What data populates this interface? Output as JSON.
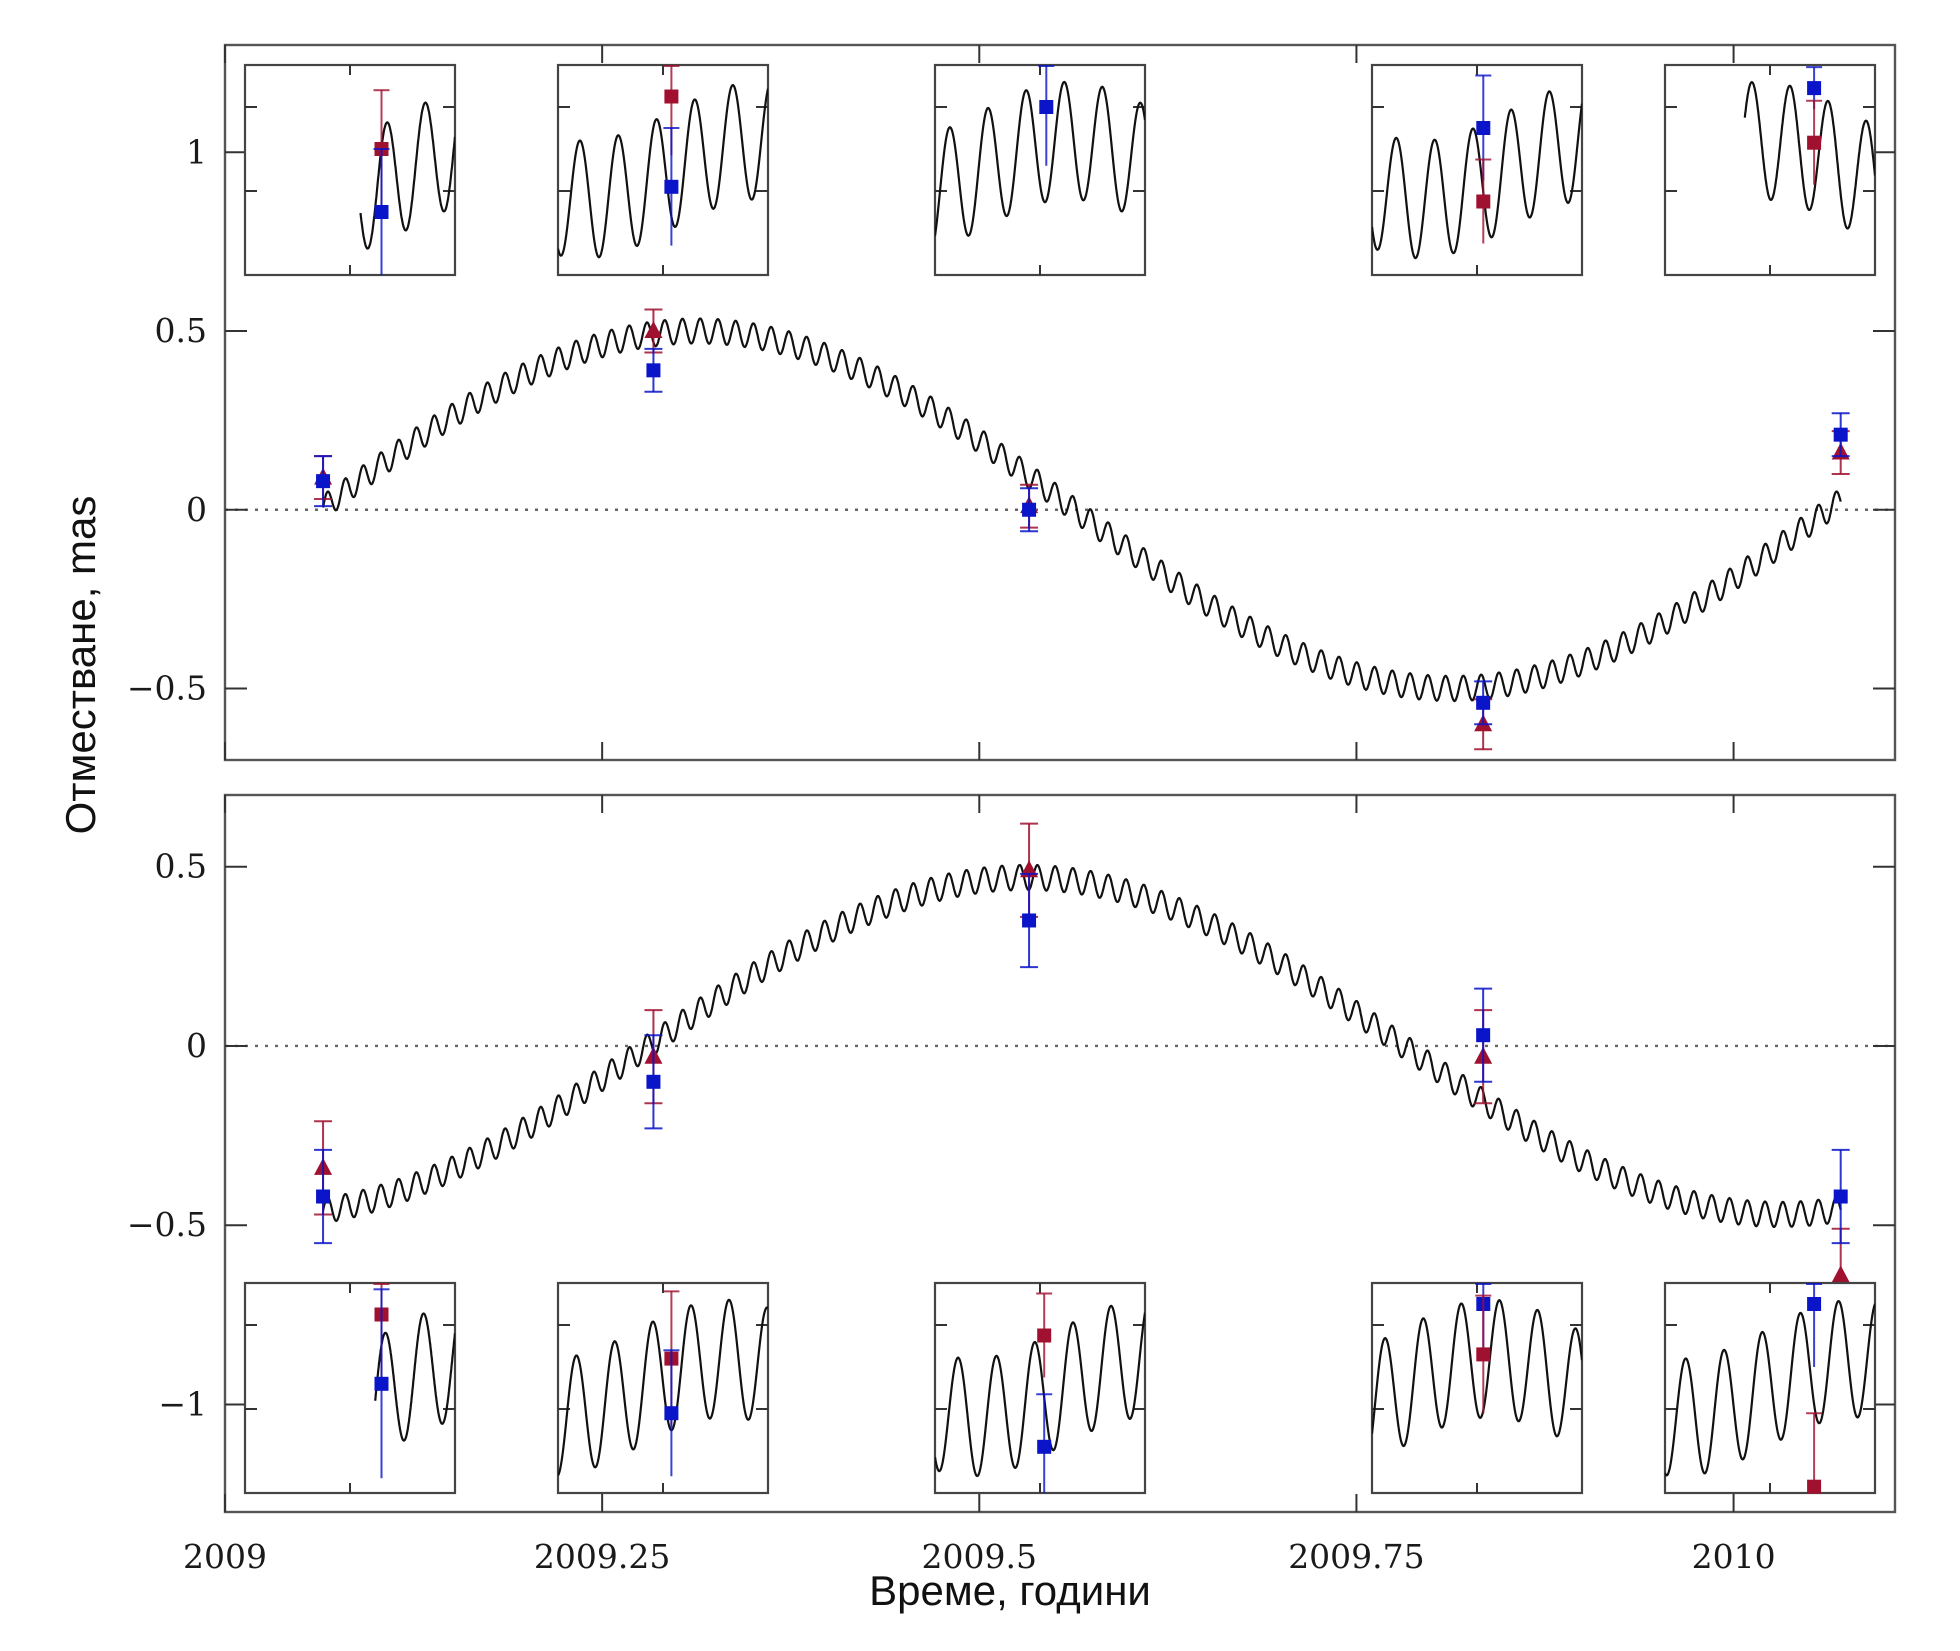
{
  "chart_data": [
    {
      "type": "scatter",
      "panel": "upper",
      "xlabel": "Време, години",
      "ylabel": "Отместване, mas",
      "xlim": [
        2009,
        2010.107
      ],
      "ylim": [
        -0.7,
        1.3
      ],
      "xticks": [
        2009,
        2009.25,
        2009.5,
        2009.75,
        2010
      ],
      "xtick_labels": [
        "2009",
        "2009.25",
        "2009.5",
        "2009.75",
        "2010"
      ],
      "yticks": [
        -0.5,
        0,
        0.5,
        1
      ],
      "ytick_labels": [
        "−0.5",
        "0",
        "0.5",
        "1"
      ],
      "reference_line": 0,
      "model": {
        "amplitude": 0.5,
        "period_years": 1.0,
        "phase_zero_year": 2009.063,
        "wiggle_amplitude": 0.035,
        "wiggle_cycles_per_year": 85
      },
      "series": [
        {
          "marker": "triangle",
          "color": "#a0102f",
          "points": [
            {
              "x": 2009.065,
              "y": 0.09,
              "err": 0.06
            },
            {
              "x": 2009.284,
              "y": 0.5,
              "err": 0.06
            },
            {
              "x": 2009.533,
              "y": 0.01,
              "err": 0.06
            },
            {
              "x": 2009.834,
              "y": -0.6,
              "err": 0.07
            },
            {
              "x": 2010.071,
              "y": 0.16,
              "err": 0.06
            }
          ]
        },
        {
          "marker": "square",
          "color": "#0a14c8",
          "points": [
            {
              "x": 2009.065,
              "y": 0.08,
              "err": 0.07
            },
            {
              "x": 2009.284,
              "y": 0.39,
              "err": 0.06
            },
            {
              "x": 2009.533,
              "y": 0.0,
              "err": 0.06
            },
            {
              "x": 2009.834,
              "y": -0.54,
              "err": 0.06
            },
            {
              "x": 2010.071,
              "y": 0.21,
              "err": 0.06
            }
          ]
        }
      ]
    },
    {
      "type": "scatter",
      "panel": "lower",
      "xlabel": "Време, години",
      "ylabel": "Отместване, mas",
      "xlim": [
        2009,
        2010.107
      ],
      "ylim": [
        -1.3,
        0.7
      ],
      "xticks": [
        2009,
        2009.25,
        2009.5,
        2009.75,
        2010
      ],
      "xtick_labels": [
        "2009",
        "2009.25",
        "2009.5",
        "2009.75",
        "2010"
      ],
      "yticks": [
        -1,
        -0.5,
        0,
        0.5
      ],
      "ytick_labels": [
        "−1",
        "−0.5",
        "0",
        "0.5"
      ],
      "reference_line": 0,
      "model": {
        "amplitude": 0.47,
        "period_years": 1.0,
        "phase_zero_year": 2009.281,
        "wiggle_amplitude": 0.035,
        "wiggle_cycles_per_year": 85
      },
      "series": [
        {
          "marker": "triangle",
          "color": "#a0102f",
          "points": [
            {
              "x": 2009.065,
              "y": -0.34,
              "err": 0.13
            },
            {
              "x": 2009.284,
              "y": -0.03,
              "err": 0.13
            },
            {
              "x": 2009.533,
              "y": 0.49,
              "err": 0.13
            },
            {
              "x": 2009.834,
              "y": -0.03,
              "err": 0.13
            },
            {
              "x": 2010.071,
              "y": -0.64,
              "err": 0.13
            }
          ]
        },
        {
          "marker": "square",
          "color": "#0a14c8",
          "points": [
            {
              "x": 2009.065,
              "y": -0.42,
              "err": 0.13
            },
            {
              "x": 2009.284,
              "y": -0.1,
              "err": 0.13
            },
            {
              "x": 2009.533,
              "y": 0.35,
              "err": 0.13
            },
            {
              "x": 2009.834,
              "y": 0.03,
              "err": 0.13
            },
            {
              "x": 2010.071,
              "y": -0.42,
              "err": 0.13
            }
          ]
        }
      ]
    }
  ],
  "insets": {
    "upper": [
      {
        "curve_phase": 0.2,
        "curve_visible_from": 0.55,
        "points": [
          {
            "color": "#a0102f",
            "marker": "square",
            "xf": 0.65,
            "yf": 0.4,
            "err": 0.28
          },
          {
            "color": "#0a14c8",
            "marker": "square",
            "xf": 0.65,
            "yf": 0.7,
            "err": 0.3
          }
        ]
      },
      {
        "curve_phase": 1.1,
        "curve_visible_from": 0.0,
        "points": [
          {
            "color": "#a0102f",
            "marker": "square",
            "xf": 0.54,
            "yf": 0.15,
            "err": 0.28
          },
          {
            "color": "#0a14c8",
            "marker": "square",
            "xf": 0.54,
            "yf": 0.58,
            "err": 0.28
          }
        ]
      },
      {
        "curve_phase": 2.3,
        "curve_visible_from": 0.0,
        "points": [
          {
            "color": "#0a14c8",
            "marker": "square",
            "xf": 0.53,
            "yf": 0.2,
            "err": 0.28
          }
        ]
      },
      {
        "curve_phase": 0.7,
        "curve_visible_from": 0.0,
        "points": [
          {
            "color": "#0a14c8",
            "marker": "square",
            "xf": 0.53,
            "yf": 0.3,
            "err": 0.25
          },
          {
            "color": "#a0102f",
            "marker": "square",
            "xf": 0.53,
            "yf": 0.65,
            "err": 0.2
          }
        ]
      },
      {
        "curve_phase": 3.0,
        "curve_visible_from": 0.38,
        "points": [
          {
            "color": "#0a14c8",
            "marker": "square",
            "xf": 0.71,
            "yf": 0.11,
            "err": 0.1
          },
          {
            "color": "#a0102f",
            "marker": "square",
            "xf": 0.71,
            "yf": 0.37,
            "err": 0.2
          }
        ]
      }
    ],
    "lower": [
      {
        "curve_phase": 0.5,
        "curve_visible_from": 0.62,
        "points": [
          {
            "color": "#a0102f",
            "marker": "square",
            "xf": 0.65,
            "yf": 0.15,
            "err": 0.3
          },
          {
            "color": "#0a14c8",
            "marker": "square",
            "xf": 0.65,
            "yf": 0.48,
            "err": 0.45
          }
        ]
      },
      {
        "curve_phase": 1.7,
        "curve_visible_from": 0.0,
        "points": [
          {
            "color": "#a0102f",
            "marker": "square",
            "xf": 0.54,
            "yf": 0.36,
            "err": 0.32
          },
          {
            "color": "#0a14c8",
            "marker": "square",
            "xf": 0.54,
            "yf": 0.62,
            "err": 0.3
          }
        ]
      },
      {
        "curve_phase": 0.9,
        "curve_visible_from": 0.0,
        "points": [
          {
            "color": "#a0102f",
            "marker": "square",
            "xf": 0.52,
            "yf": 0.25,
            "err": 0.2
          },
          {
            "color": "#0a14c8",
            "marker": "square",
            "xf": 0.52,
            "yf": 0.78,
            "err": 0.25
          }
        ]
      },
      {
        "curve_phase": 2.6,
        "curve_visible_from": 0.0,
        "points": [
          {
            "color": "#0a14c8",
            "marker": "square",
            "xf": 0.53,
            "yf": 0.1,
            "err": 0.25
          },
          {
            "color": "#a0102f",
            "marker": "square",
            "xf": 0.53,
            "yf": 0.34,
            "err": 0.28
          }
        ]
      },
      {
        "curve_phase": 1.3,
        "curve_visible_from": 0.0,
        "points": [
          {
            "color": "#0a14c8",
            "marker": "square",
            "xf": 0.71,
            "yf": 0.1,
            "err": 0.3
          },
          {
            "color": "#a0102f",
            "marker": "square",
            "xf": 0.71,
            "yf": 0.97,
            "err": 0.35
          }
        ]
      }
    ]
  }
}
